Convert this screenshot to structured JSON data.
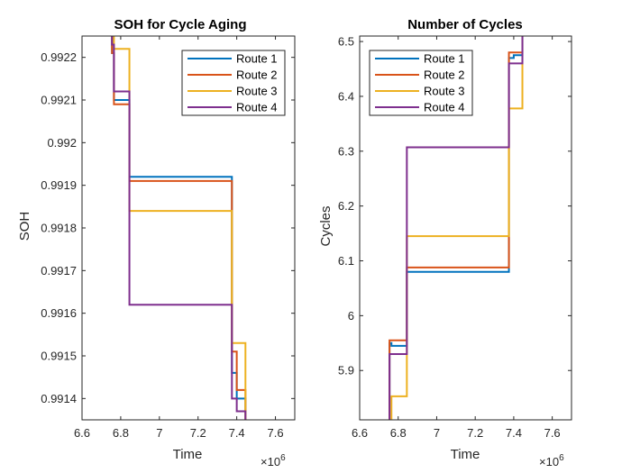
{
  "chart_data": [
    {
      "type": "line",
      "title": "SOH for Cycle Aging",
      "xlabel": "Time",
      "ylabel": "SOH",
      "x_multiplier": "×10",
      "x_multiplier_exp": "6",
      "xlim": [
        6.6,
        7.7
      ],
      "ylim": [
        0.99135,
        0.99225
      ],
      "xticks": [
        6.6,
        6.8,
        7,
        7.2,
        7.4,
        7.6
      ],
      "xtick_labels": [
        "6.6",
        "6.8",
        "7",
        "7.2",
        "7.4",
        "7.6"
      ],
      "yticks": [
        0.9914,
        0.9915,
        0.9916,
        0.9917,
        0.9918,
        0.9919,
        0.992,
        0.9921,
        0.9922
      ],
      "ytick_labels": [
        "0.9914",
        "0.9915",
        "0.9916",
        "0.9917",
        "0.9918",
        "0.9919",
        "0.992",
        "0.9921",
        "0.9922"
      ],
      "legend_position": "top-right",
      "series": [
        {
          "name": "Route 1",
          "color": "#0072BD",
          "x": [
            6.755,
            6.755,
            6.765,
            6.765,
            6.845,
            6.845,
            7.375,
            7.375,
            7.4,
            7.4,
            7.445,
            7.445
          ],
          "y": [
            0.99225,
            0.99221,
            0.99221,
            0.9921,
            0.9921,
            0.99192,
            0.99192,
            0.99146,
            0.99146,
            0.9914,
            0.9914,
            0.99135
          ]
        },
        {
          "name": "Route 2",
          "color": "#D95319",
          "x": [
            6.755,
            6.755,
            6.765,
            6.765,
            6.845,
            6.845,
            7.375,
            7.375,
            7.4,
            7.4,
            7.445,
            7.445
          ],
          "y": [
            0.99225,
            0.99221,
            0.99221,
            0.99209,
            0.99209,
            0.99191,
            0.99191,
            0.99151,
            0.99151,
            0.99142,
            0.99142,
            0.99135
          ]
        },
        {
          "name": "Route 3",
          "color": "#EDB120",
          "x": [
            6.765,
            6.765,
            6.845,
            6.845,
            7.375,
            7.375,
            7.4,
            7.4,
            7.445,
            7.445
          ],
          "y": [
            0.99225,
            0.99222,
            0.99222,
            0.99184,
            0.99184,
            0.99153,
            0.99153,
            0.99153,
            0.99153,
            0.99135
          ]
        },
        {
          "name": "Route 4",
          "color": "#7E2F8E",
          "x": [
            6.755,
            6.755,
            6.765,
            6.765,
            6.845,
            6.845,
            7.375,
            7.375,
            7.4,
            7.4,
            7.445,
            7.445
          ],
          "y": [
            0.99225,
            0.99223,
            0.99223,
            0.99212,
            0.99212,
            0.99162,
            0.99162,
            0.9914,
            0.9914,
            0.99137,
            0.99137,
            0.99135
          ]
        }
      ]
    },
    {
      "type": "line",
      "title": "Number of Cycles",
      "xlabel": "Time",
      "ylabel": "Cycles",
      "x_multiplier": "×10",
      "x_multiplier_exp": "6",
      "xlim": [
        6.6,
        7.7
      ],
      "ylim": [
        5.81,
        6.51
      ],
      "xticks": [
        6.6,
        6.8,
        7,
        7.2,
        7.4,
        7.6
      ],
      "xtick_labels": [
        "6.6",
        "6.8",
        "7",
        "7.2",
        "7.4",
        "7.6"
      ],
      "yticks": [
        5.9,
        6,
        6.1,
        6.2,
        6.3,
        6.4,
        6.5
      ],
      "ytick_labels": [
        "5.9",
        "6",
        "6.1",
        "6.2",
        "6.3",
        "6.4",
        "6.5"
      ],
      "legend_position": "top-left",
      "series": [
        {
          "name": "Route 1",
          "color": "#0072BD",
          "x": [
            6.755,
            6.755,
            6.765,
            6.765,
            6.845,
            6.845,
            7.375,
            7.375,
            7.4,
            7.4,
            7.445,
            7.445
          ],
          "y": [
            5.81,
            5.95,
            5.95,
            5.945,
            5.945,
            6.08,
            6.08,
            6.47,
            6.47,
            6.475,
            6.475,
            6.51
          ]
        },
        {
          "name": "Route 2",
          "color": "#D95319",
          "x": [
            6.755,
            6.755,
            6.765,
            6.765,
            6.845,
            6.845,
            7.375,
            7.375,
            7.4,
            7.4,
            7.445,
            7.445
          ],
          "y": [
            5.81,
            5.955,
            5.955,
            5.955,
            5.955,
            6.088,
            6.088,
            6.48,
            6.48,
            6.48,
            6.48,
            6.51
          ]
        },
        {
          "name": "Route 3",
          "color": "#EDB120",
          "x": [
            6.765,
            6.765,
            6.845,
            6.845,
            7.375,
            7.375,
            7.4,
            7.4,
            7.445,
            7.445
          ],
          "y": [
            5.81,
            5.853,
            5.853,
            6.145,
            6.145,
            6.378,
            6.378,
            6.378,
            6.378,
            6.51
          ]
        },
        {
          "name": "Route 4",
          "color": "#7E2F8E",
          "x": [
            6.755,
            6.755,
            6.765,
            6.765,
            6.845,
            6.845,
            7.375,
            7.375,
            7.4,
            7.4,
            7.445,
            7.445
          ],
          "y": [
            5.81,
            5.93,
            5.93,
            5.93,
            5.93,
            6.307,
            6.307,
            6.46,
            6.46,
            6.46,
            6.46,
            6.51
          ]
        }
      ]
    }
  ]
}
